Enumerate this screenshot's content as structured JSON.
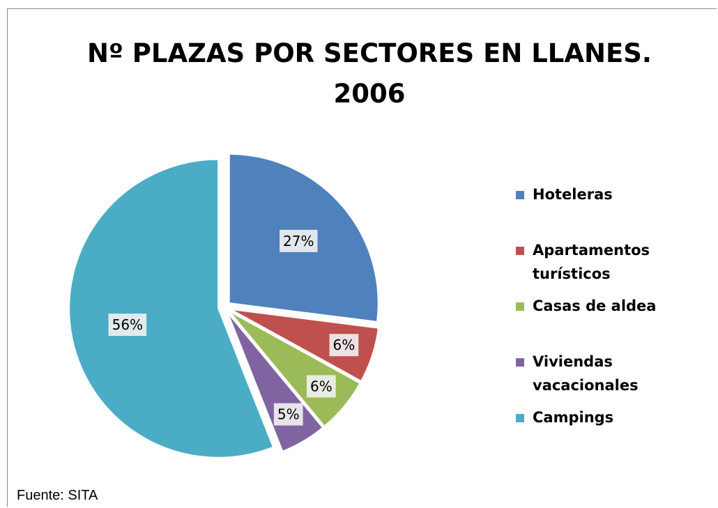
{
  "chart_data": {
    "type": "pie",
    "title": "Nº PLAZAS POR SECTORES EN LLANES. 2006",
    "categories": [
      "Hoteleras",
      "Apartamentos turísticos",
      "Casas de aldea",
      "Viviendas vacacionales",
      "Campings"
    ],
    "values": [
      27,
      6,
      6,
      5,
      56
    ],
    "value_labels": [
      "27%",
      "6%",
      "6%",
      "5%",
      "56%"
    ],
    "colors": [
      "#4f81bd",
      "#c0504d",
      "#9bbb59",
      "#8064a2",
      "#4bacc6"
    ],
    "legend": "right",
    "source": "Fuente: SITA"
  }
}
